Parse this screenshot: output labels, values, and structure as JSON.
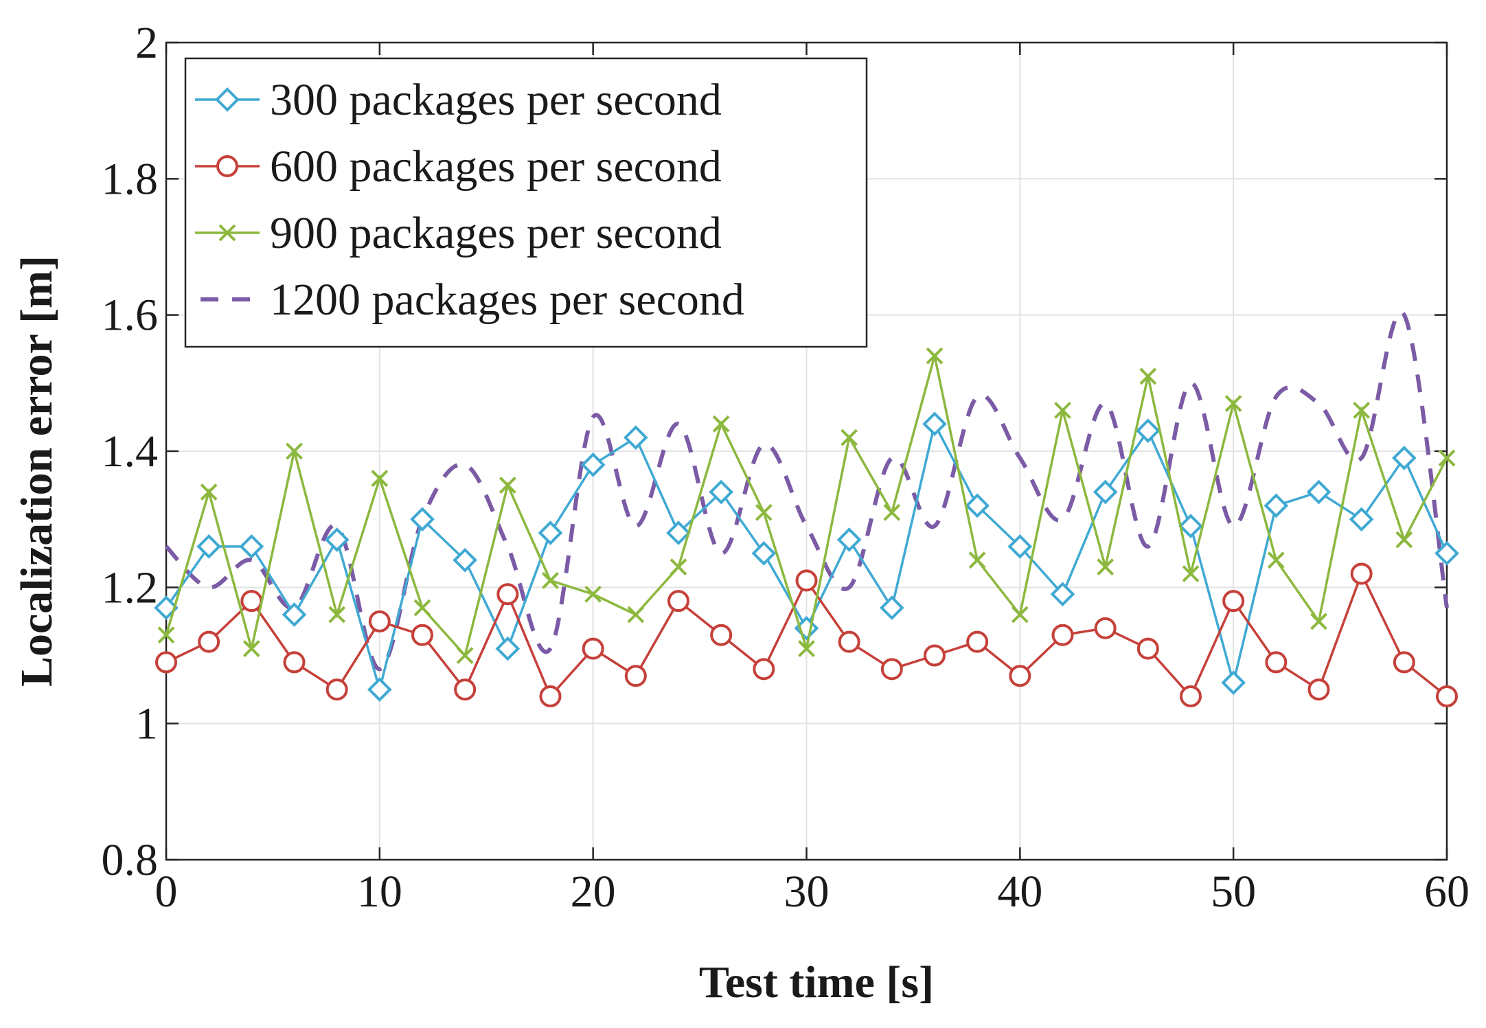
{
  "chart_data": {
    "type": "line",
    "title": "",
    "xlabel": "Test time [s]",
    "ylabel": "Localization error [m]",
    "xlim": [
      0,
      60
    ],
    "ylim": [
      0.8,
      2
    ],
    "xticks": [
      0,
      10,
      20,
      30,
      40,
      50,
      60
    ],
    "yticks": [
      0.8,
      1,
      1.2,
      1.4,
      1.6,
      1.8,
      2
    ],
    "xtick_labels": [
      "0",
      "10",
      "20",
      "30",
      "40",
      "50",
      "60"
    ],
    "ytick_labels": [
      "0.8",
      "1",
      "1.2",
      "1.4",
      "1.6",
      "1.8",
      "2"
    ],
    "grid": true,
    "legend_position": "top-left",
    "series": [
      {
        "name": "300 packages per second",
        "color": "#3fa9d3",
        "marker": "diamond",
        "line": "solid",
        "x": [
          0,
          2,
          4,
          6,
          8,
          10,
          12,
          14,
          16,
          18,
          20,
          22,
          24,
          26,
          28,
          30,
          32,
          34,
          36,
          38,
          40,
          42,
          44,
          46,
          48,
          50,
          52,
          54,
          56,
          58,
          60
        ],
        "values": [
          1.17,
          1.26,
          1.26,
          1.16,
          1.27,
          1.05,
          1.3,
          1.24,
          1.11,
          1.28,
          1.38,
          1.42,
          1.28,
          1.34,
          1.25,
          1.14,
          1.27,
          1.17,
          1.44,
          1.32,
          1.26,
          1.19,
          1.34,
          1.43,
          1.29,
          1.06,
          1.32,
          1.34,
          1.3,
          1.39,
          1.25
        ]
      },
      {
        "name": "600 packages per second",
        "color": "#c6403a",
        "marker": "circle",
        "line": "solid",
        "x": [
          0,
          2,
          4,
          6,
          8,
          10,
          12,
          14,
          16,
          18,
          20,
          22,
          24,
          26,
          28,
          30,
          32,
          34,
          36,
          38,
          40,
          42,
          44,
          46,
          48,
          50,
          52,
          54,
          56,
          58,
          60
        ],
        "values": [
          1.09,
          1.12,
          1.18,
          1.09,
          1.05,
          1.15,
          1.13,
          1.05,
          1.19,
          1.04,
          1.11,
          1.07,
          1.18,
          1.13,
          1.08,
          1.21,
          1.12,
          1.08,
          1.1,
          1.12,
          1.07,
          1.13,
          1.14,
          1.11,
          1.04,
          1.18,
          1.09,
          1.05,
          1.22,
          1.09,
          1.04
        ]
      },
      {
        "name": "900 packages per second",
        "color": "#8cb83e",
        "marker": "x",
        "line": "solid",
        "x": [
          0,
          2,
          4,
          6,
          8,
          10,
          12,
          14,
          16,
          18,
          20,
          22,
          24,
          26,
          28,
          30,
          32,
          34,
          36,
          38,
          40,
          42,
          44,
          46,
          48,
          50,
          52,
          54,
          56,
          58,
          60
        ],
        "values": [
          1.13,
          1.34,
          1.11,
          1.4,
          1.16,
          1.36,
          1.17,
          1.1,
          1.35,
          1.21,
          1.19,
          1.16,
          1.23,
          1.44,
          1.31,
          1.11,
          1.42,
          1.31,
          1.54,
          1.24,
          1.16,
          1.46,
          1.23,
          1.51,
          1.22,
          1.47,
          1.24,
          1.15,
          1.46,
          1.27,
          1.39
        ]
      },
      {
        "name": "1200 packages per second",
        "color": "#7b5ba6",
        "marker": "none",
        "line": "dashed",
        "x": [
          0,
          2,
          4,
          6,
          8,
          10,
          12,
          14,
          16,
          18,
          20,
          22,
          24,
          26,
          28,
          30,
          32,
          34,
          36,
          38,
          40,
          42,
          44,
          46,
          48,
          50,
          52,
          54,
          56,
          58,
          60
        ],
        "values": [
          1.26,
          1.2,
          1.24,
          1.17,
          1.29,
          1.08,
          1.3,
          1.38,
          1.26,
          1.11,
          1.45,
          1.29,
          1.44,
          1.25,
          1.41,
          1.29,
          1.2,
          1.39,
          1.29,
          1.48,
          1.39,
          1.3,
          1.47,
          1.26,
          1.5,
          1.29,
          1.48,
          1.47,
          1.39,
          1.6,
          1.17
        ]
      }
    ]
  }
}
